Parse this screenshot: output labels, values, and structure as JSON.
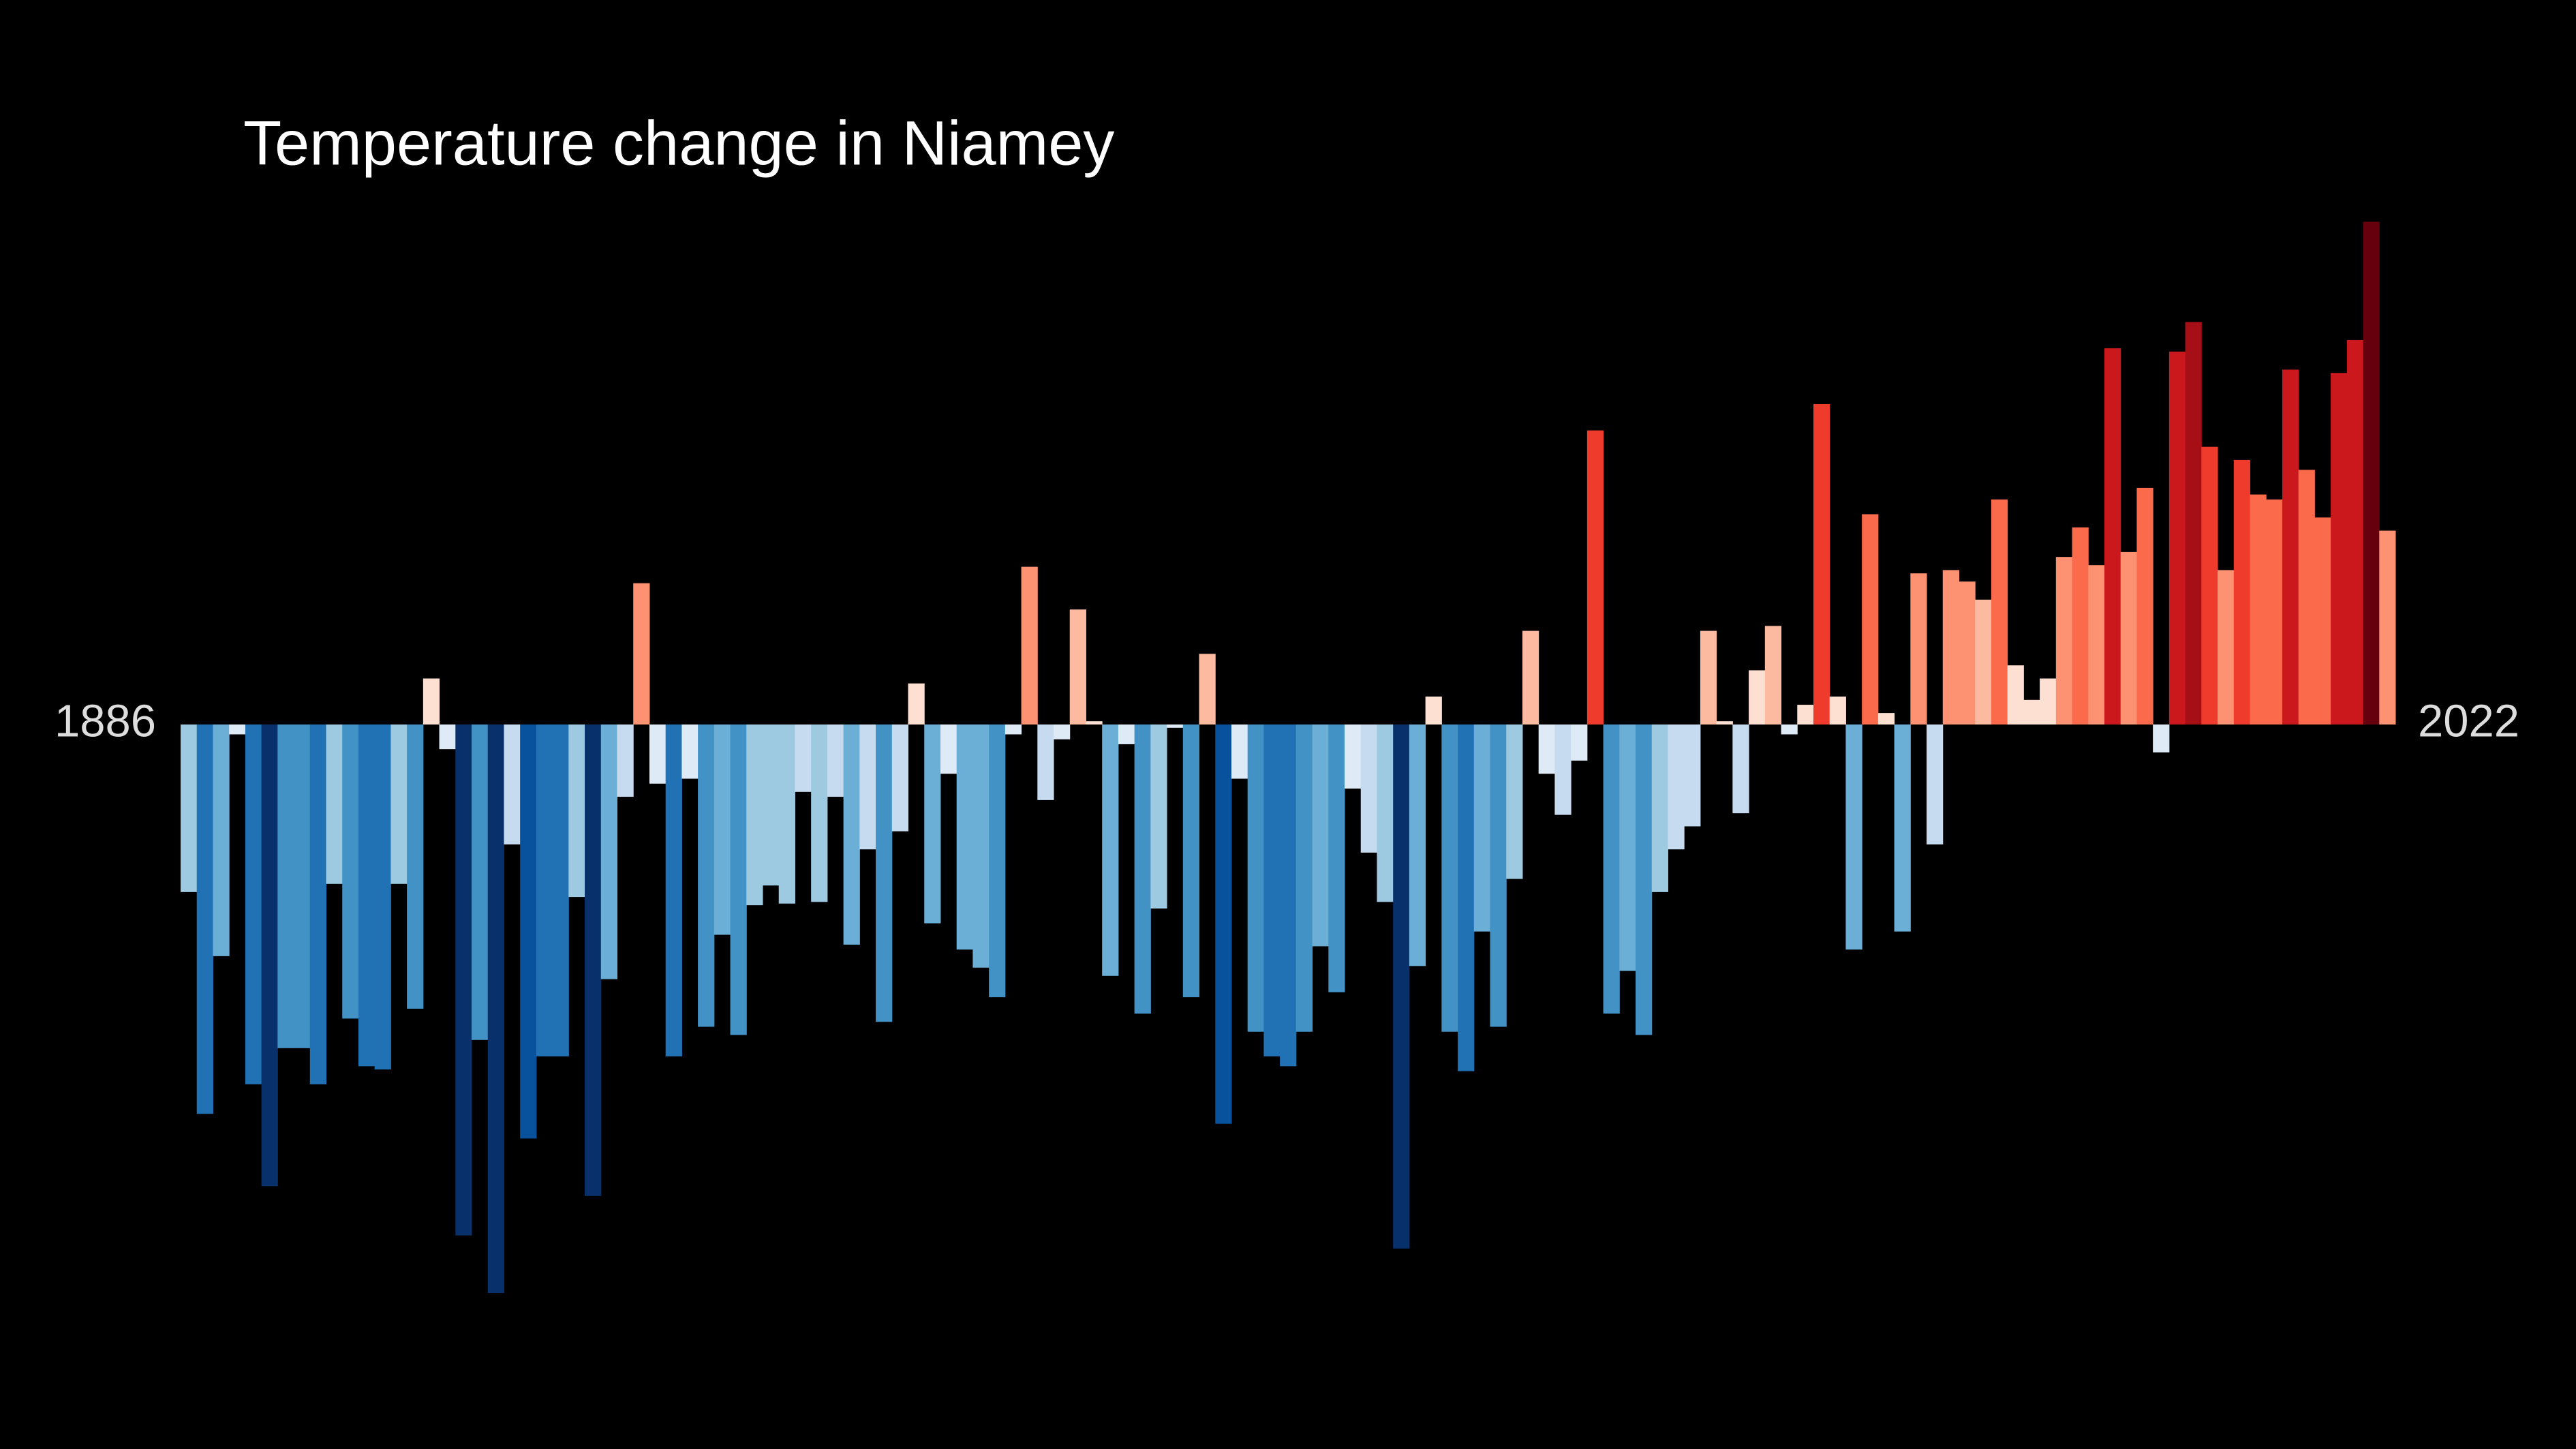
{
  "chart_data": {
    "type": "bar",
    "title": "Temperature change in Niamey",
    "x": [
      1886,
      1887,
      1888,
      1889,
      1890,
      1891,
      1892,
      1893,
      1894,
      1895,
      1896,
      1897,
      1898,
      1899,
      1900,
      1901,
      1902,
      1903,
      1904,
      1905,
      1906,
      1907,
      1908,
      1909,
      1910,
      1911,
      1912,
      1913,
      1914,
      1915,
      1916,
      1917,
      1918,
      1919,
      1920,
      1921,
      1922,
      1923,
      1924,
      1925,
      1926,
      1927,
      1928,
      1929,
      1930,
      1931,
      1932,
      1933,
      1934,
      1935,
      1936,
      1937,
      1938,
      1939,
      1940,
      1941,
      1942,
      1943,
      1944,
      1945,
      1946,
      1947,
      1948,
      1949,
      1950,
      1951,
      1952,
      1953,
      1954,
      1955,
      1956,
      1957,
      1958,
      1959,
      1960,
      1961,
      1962,
      1963,
      1964,
      1965,
      1966,
      1967,
      1968,
      1969,
      1970,
      1971,
      1972,
      1973,
      1974,
      1975,
      1976,
      1977,
      1978,
      1979,
      1980,
      1981,
      1982,
      1983,
      1984,
      1985,
      1986,
      1987,
      1988,
      1989,
      1990,
      1991,
      1992,
      1993,
      1994,
      1995,
      1996,
      1997,
      1998,
      1999,
      2000,
      2001,
      2002,
      2003,
      2004,
      2005,
      2006,
      2007,
      2008,
      2009,
      2010,
      2011,
      2012,
      2013,
      2014,
      2015,
      2016,
      2017,
      2018,
      2019,
      2020,
      2021,
      2022
    ],
    "values": [
      -1.02,
      -2.37,
      -1.41,
      -0.06,
      -2.19,
      -2.81,
      -1.97,
      -1.97,
      -2.19,
      -0.97,
      -1.79,
      -2.08,
      -2.1,
      -0.97,
      -1.73,
      0.28,
      -0.15,
      -3.11,
      -1.92,
      -3.46,
      -0.73,
      -2.52,
      -2.02,
      -2.02,
      -1.05,
      -2.87,
      -1.55,
      -0.44,
      0.86,
      -0.36,
      -2.02,
      -0.33,
      -1.84,
      -1.28,
      -1.89,
      -1.1,
      -0.98,
      -1.09,
      -0.41,
      -1.08,
      -0.44,
      -1.34,
      -0.76,
      -1.81,
      -0.65,
      0.25,
      -1.21,
      -0.3,
      -1.37,
      -1.48,
      -1.66,
      -0.06,
      0.96,
      -0.46,
      -0.09,
      0.7,
      0.02,
      -1.53,
      -0.12,
      -1.76,
      -1.12,
      -0.02,
      -1.66,
      0.43,
      -2.43,
      -0.33,
      -1.87,
      -2.02,
      -2.08,
      -1.87,
      -1.35,
      -1.63,
      -0.39,
      -0.78,
      -1.08,
      -3.19,
      -1.47,
      0.17,
      -1.87,
      -2.11,
      -1.26,
      -1.84,
      -0.94,
      0.57,
      -0.3,
      -0.55,
      -0.22,
      1.79,
      -1.76,
      -1.5,
      -1.89,
      -1.02,
      -0.76,
      -0.62,
      0.57,
      0.02,
      -0.54,
      0.33,
      0.6,
      -0.06,
      0.12,
      1.95,
      0.17,
      -1.37,
      1.28,
      0.07,
      -1.26,
      0.92,
      -0.73,
      0.94,
      0.87,
      0.76,
      1.37,
      0.36,
      0.15,
      0.28,
      1.02,
      1.2,
      0.97,
      2.29,
      1.05,
      1.44,
      -0.17,
      2.27,
      2.45,
      1.69,
      0.94,
      1.61,
      1.4,
      1.37,
      2.16,
      1.55,
      1.26,
      2.14,
      2.34,
      3.06,
      1.18
    ],
    "xlim": [
      1885.5,
      2022.5
    ],
    "ylim": [
      -4.41,
      4.41
    ],
    "colors": [
      "#08306b",
      "#08519c",
      "#2171b5",
      "#4292c6",
      "#6baed6",
      "#9ecae1",
      "#c6dbef",
      "#deebf7",
      "#fee0d2",
      "#fcbba1",
      "#fc9272",
      "#fb6a4a",
      "#ef3b2c",
      "#cb181d",
      "#a50f15",
      "#67000d"
    ],
    "clim": [
      -3.2,
      3.2
    ]
  }
}
